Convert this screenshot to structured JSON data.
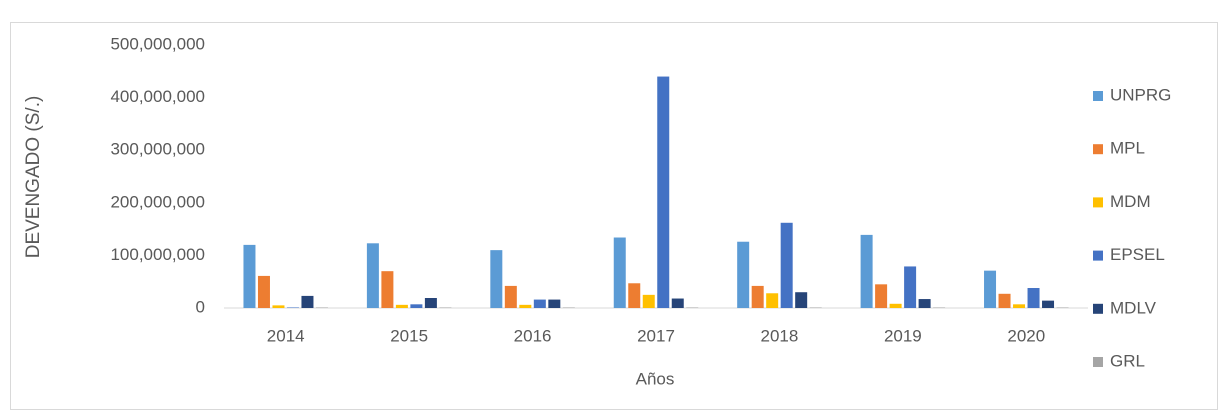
{
  "chart_data": {
    "type": "bar",
    "y_label": "DEVENGADO  (S/.)",
    "x_label": "Años",
    "categories": [
      "2014",
      "2015",
      "2016",
      "2017",
      "2018",
      "2019",
      "2020"
    ],
    "series": [
      {
        "name": "UNPRG",
        "color": "#5b9bd5",
        "values": [
          120000000,
          123000000,
          110000000,
          134000000,
          126000000,
          139000000,
          71000000
        ]
      },
      {
        "name": "MPL",
        "color": "#ed7d31",
        "values": [
          61000000,
          70000000,
          42000000,
          47000000,
          42000000,
          45000000,
          27000000
        ]
      },
      {
        "name": "MDM",
        "color": "#ffc000",
        "values": [
          5000000,
          6000000,
          6000000,
          25000000,
          28000000,
          8000000,
          7000000
        ]
      },
      {
        "name": "EPSEL",
        "color": "#4472c4",
        "values": [
          1000000,
          7000000,
          16000000,
          440000000,
          162000000,
          79000000,
          38000000
        ]
      },
      {
        "name": "MDLV",
        "color": "#264478",
        "values": [
          23000000,
          19000000,
          16000000,
          18000000,
          30000000,
          17000000,
          14000000
        ]
      },
      {
        "name": "GRL",
        "color": "#a5a5a5",
        "values": [
          1000000,
          1000000,
          1000000,
          1000000,
          1000000,
          1000000,
          1000000
        ]
      }
    ],
    "ylim": [
      0,
      500000000
    ],
    "yticks": [
      0,
      {
        "value": 100000000,
        "label": "100,000,000"
      },
      {
        "value": 200000000,
        "label": "200,000,000"
      },
      {
        "value": 300000000,
        "label": "300,000,000"
      },
      {
        "value": 400000000,
        "label": "400,000,000"
      },
      {
        "value": 500000000,
        "label": "500,000,000"
      }
    ],
    "grid": false,
    "legend": "right"
  }
}
